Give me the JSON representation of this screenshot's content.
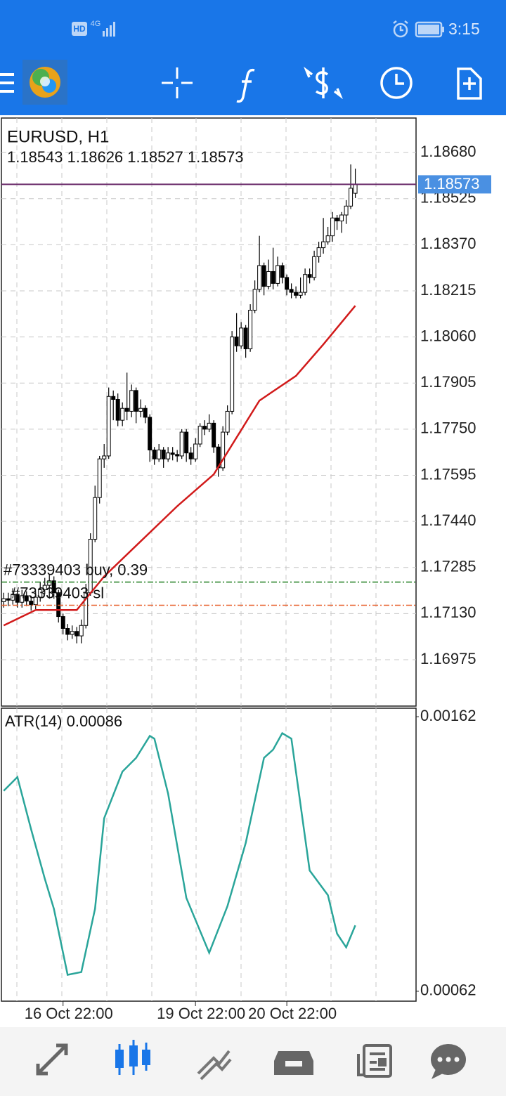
{
  "status_bar": {
    "badge": "HD",
    "network": "4G",
    "time": "3:15"
  },
  "chart_data": [
    {
      "type": "candlestick",
      "title": "EURUSD, H1",
      "subtitle": "1.18543 1.18626 1.18527 1.18573",
      "xlim": [
        -0.5,
        90.3
      ],
      "ylim": [
        1.16819,
        1.18796
      ],
      "yticks": [
        {
          "value": 1.1868,
          "label": "1.18680"
        },
        1.18525,
        {
          "value": 1.1837,
          "label": "1.18370"
        },
        1.18215,
        {
          "value": 1.1806,
          "label": "1.18060"
        },
        1.17905,
        {
          "value": 1.1775,
          "label": "1.17750"
        },
        1.17595,
        {
          "value": 1.1744,
          "label": "1.17440"
        },
        1.17285,
        {
          "value": 1.1713,
          "label": "1.17130"
        },
        1.16975
      ],
      "grid": true,
      "ohlc": {
        "open": [
          1.1717,
          1.1718,
          1.17175,
          1.17195,
          1.17168,
          1.1719,
          1.17172,
          1.1716,
          1.17185,
          1.1721,
          1.17225,
          1.1724,
          1.172,
          1.1712,
          1.1708,
          1.1706,
          1.1707,
          1.17055,
          1.1709,
          1.172,
          1.1738,
          1.1752,
          1.1765,
          1.1766,
          1.1786,
          1.1785,
          1.1778,
          1.1782,
          1.1781,
          1.1788,
          1.1781,
          1.1782,
          1.1779,
          1.1768,
          1.1765,
          1.1768,
          1.1765,
          1.1767,
          1.17665,
          1.1766,
          1.1774,
          1.1767,
          1.1765,
          1.177,
          1.1776,
          1.1775,
          1.1777,
          1.1769,
          1.1762,
          1.1774,
          1.1781,
          1.1806,
          1.1803,
          1.1809,
          1.1802,
          1.1815,
          1.1822,
          1.183,
          1.1823,
          1.1828,
          1.1824,
          1.183,
          1.1826,
          1.1822,
          1.1821,
          1.182,
          1.1821,
          1.1827,
          1.1826,
          1.1833,
          1.1836,
          1.1838,
          1.184,
          1.1846,
          1.1845,
          1.1847,
          1.185,
          1.18543
        ],
        "high": [
          1.172,
          1.172,
          1.17215,
          1.1721,
          1.1721,
          1.17205,
          1.1719,
          1.17205,
          1.17235,
          1.1725,
          1.1726,
          1.17255,
          1.1721,
          1.1713,
          1.17095,
          1.1709,
          1.17085,
          1.1711,
          1.1723,
          1.174,
          1.1756,
          1.1766,
          1.177,
          1.1789,
          1.1788,
          1.1787,
          1.1784,
          1.1794,
          1.179,
          1.1789,
          1.1785,
          1.1783,
          1.178,
          1.1769,
          1.177,
          1.1769,
          1.1769,
          1.1769,
          1.1768,
          1.1775,
          1.1775,
          1.1769,
          1.1772,
          1.1777,
          1.1778,
          1.178,
          1.1778,
          1.177,
          1.1776,
          1.1783,
          1.1808,
          1.1814,
          1.1811,
          1.181,
          1.1817,
          1.1825,
          1.184,
          1.1831,
          1.1832,
          1.1836,
          1.1833,
          1.1831,
          1.1827,
          1.1824,
          1.1823,
          1.1826,
          1.1829,
          1.1829,
          1.1835,
          1.1838,
          1.1846,
          1.1843,
          1.1848,
          1.1847,
          1.1848,
          1.1852,
          1.1864,
          1.18626
        ],
        "low": [
          1.1715,
          1.17155,
          1.1716,
          1.1715,
          1.1715,
          1.17155,
          1.1714,
          1.17145,
          1.1717,
          1.17195,
          1.1718,
          1.1718,
          1.171,
          1.1706,
          1.1704,
          1.17045,
          1.1703,
          1.1703,
          1.1708,
          1.1719,
          1.1737,
          1.175,
          1.1762,
          1.1765,
          1.1778,
          1.1776,
          1.1776,
          1.1778,
          1.1779,
          1.1777,
          1.1779,
          1.1777,
          1.1764,
          1.1763,
          1.1764,
          1.1762,
          1.1764,
          1.17645,
          1.1764,
          1.1765,
          1.1764,
          1.1763,
          1.1764,
          1.1769,
          1.1773,
          1.1774,
          1.1767,
          1.1759,
          1.1761,
          1.1773,
          1.178,
          1.1801,
          1.1802,
          1.1799,
          1.1801,
          1.1814,
          1.1821,
          1.182,
          1.1822,
          1.1822,
          1.1823,
          1.1824,
          1.182,
          1.1819,
          1.1819,
          1.1819,
          1.182,
          1.1824,
          1.1825,
          1.1831,
          1.1834,
          1.1837,
          1.1838,
          1.1842,
          1.1841,
          1.1844,
          1.1849,
          1.18527
        ],
        "close": [
          1.1718,
          1.17175,
          1.17195,
          1.17168,
          1.1719,
          1.17172,
          1.1716,
          1.17185,
          1.1721,
          1.17225,
          1.1724,
          1.172,
          1.1712,
          1.1708,
          1.1706,
          1.1707,
          1.17055,
          1.1709,
          1.172,
          1.1738,
          1.1752,
          1.1765,
          1.1766,
          1.1786,
          1.1785,
          1.1778,
          1.1782,
          1.1781,
          1.1788,
          1.1781,
          1.1782,
          1.1779,
          1.1768,
          1.1765,
          1.1768,
          1.1765,
          1.1767,
          1.17665,
          1.1766,
          1.1774,
          1.1767,
          1.1765,
          1.177,
          1.1776,
          1.1775,
          1.1777,
          1.1769,
          1.1762,
          1.1774,
          1.1781,
          1.1806,
          1.1803,
          1.1809,
          1.1802,
          1.1815,
          1.1822,
          1.183,
          1.1823,
          1.1828,
          1.1824,
          1.183,
          1.1826,
          1.1822,
          1.1821,
          1.182,
          1.1821,
          1.1827,
          1.1826,
          1.1833,
          1.1836,
          1.1838,
          1.184,
          1.1846,
          1.1845,
          1.1847,
          1.185,
          1.1856,
          1.18573
        ]
      },
      "ma": {
        "color": "#d11a1a",
        "x": [
          0,
          7,
          16,
          22,
          30,
          38,
          46,
          56,
          64,
          70,
          77
        ],
        "values": [
          1.1709,
          1.17142,
          1.17142,
          1.17255,
          1.17373,
          1.17491,
          1.17598,
          1.17846,
          1.17929,
          1.18035,
          1.18165
        ]
      },
      "bid": {
        "value": 1.18573,
        "color": "#4a90e2"
      },
      "orders": [
        {
          "label": "#73339403 buy, 0.39",
          "value": 1.17236,
          "color": "#1e7d1e"
        },
        {
          "label": "#73339403 sl",
          "value": 1.17158,
          "color": "#e8602c"
        }
      ]
    },
    {
      "type": "line",
      "title": "ATR(14) 0.00086",
      "color": "#2aa59a",
      "xlim": [
        -0.5,
        90.3
      ],
      "ylim": [
        0.000584,
        0.001651
      ],
      "yticks": [
        0.00162,
        0.00062
      ],
      "x": [
        0,
        3,
        6,
        9,
        11,
        14,
        17,
        20,
        22,
        26,
        29,
        32,
        33,
        36,
        40,
        45,
        49,
        53,
        57,
        59,
        61,
        63,
        67,
        71,
        73,
        75,
        77
      ],
      "values": [
        0.00135,
        0.0014,
        0.00121,
        0.00103,
        0.00092,
        0.00068,
        0.00069,
        0.00092,
        0.00125,
        0.00142,
        0.00147,
        0.00155,
        0.00154,
        0.00134,
        0.00096,
        0.00076,
        0.00093,
        0.00116,
        0.00147,
        0.0015,
        0.00156,
        0.00154,
        0.00106,
        0.00097,
        0.00083,
        0.00078,
        0.00086
      ],
      "xticks": [
        {
          "value": 13,
          "label": "16 Oct 22:00"
        },
        {
          "value": 42,
          "label": "19 Oct 22:00"
        },
        {
          "value": 62,
          "label": "20 Oct 22:00"
        }
      ]
    }
  ]
}
